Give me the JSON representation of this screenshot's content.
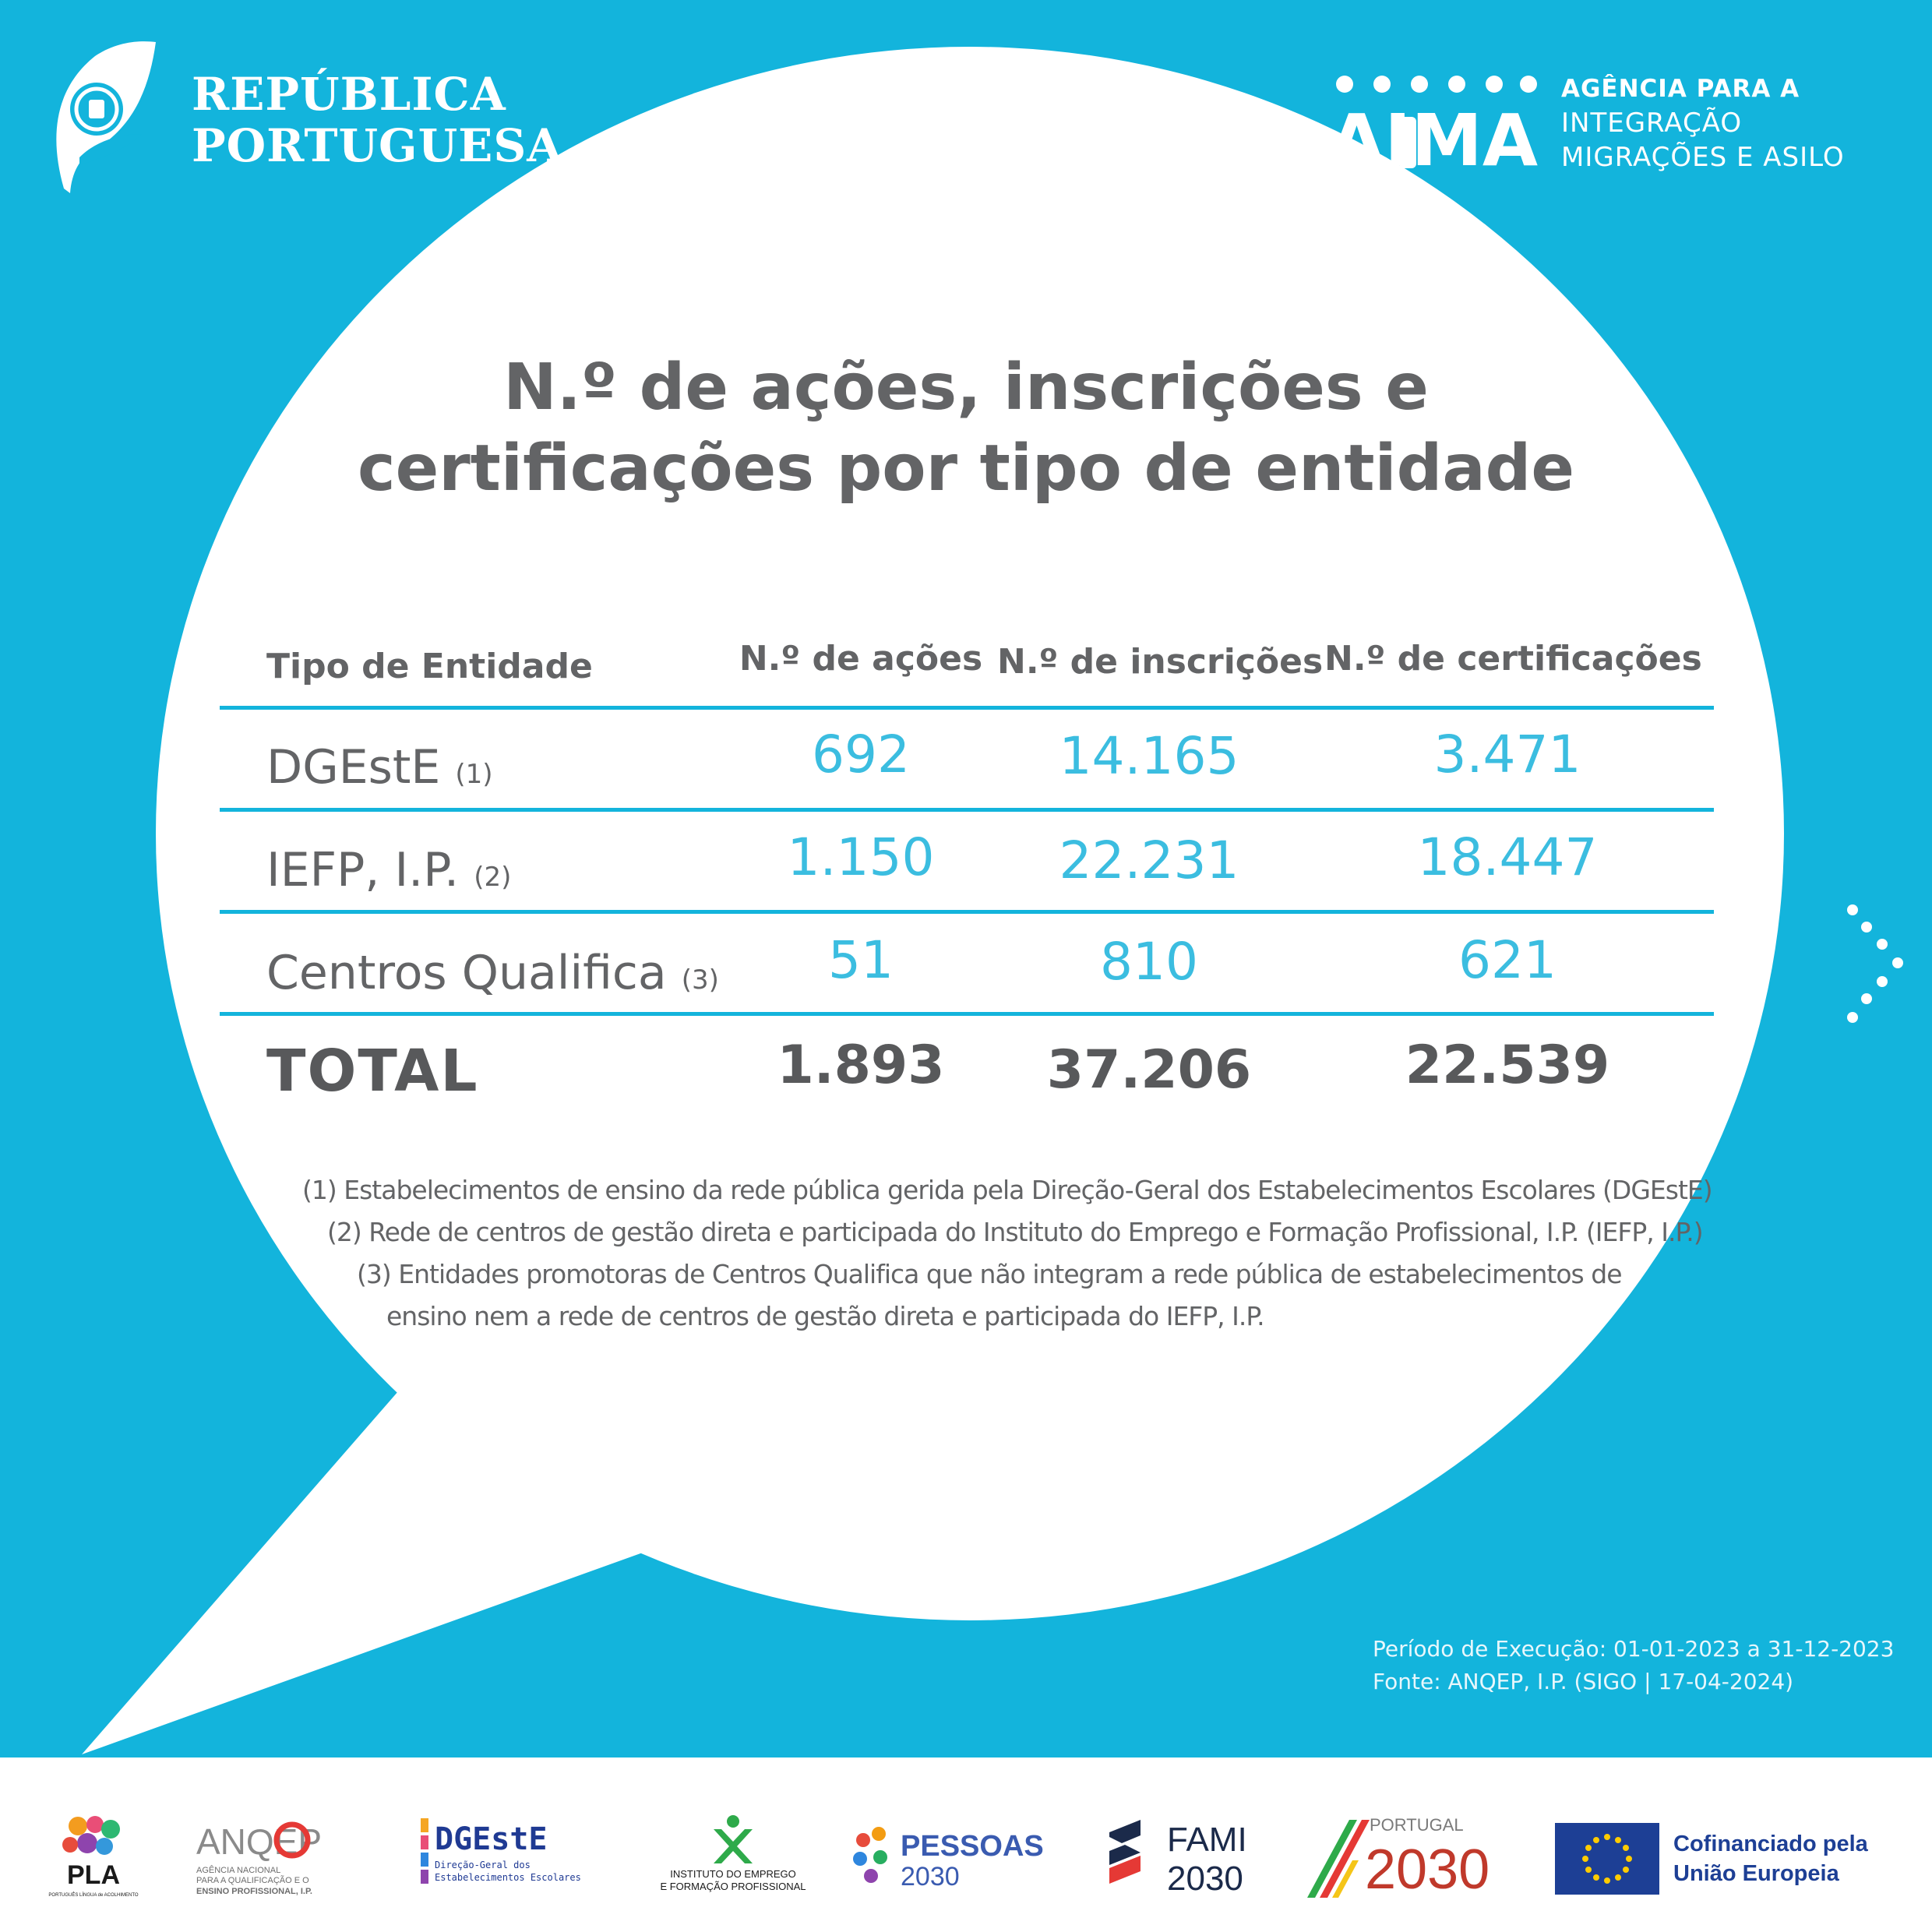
{
  "header": {
    "republica": [
      "REPÚBLICA",
      "PORTUGUESA"
    ],
    "aima_wordmark": "AIMA",
    "aima_lines": [
      "AGÊNCIA PARA A",
      "INTEGRAÇÃO",
      "MIGRAÇÕES E ASILO"
    ]
  },
  "title": [
    "N.º de ações, inscrições e",
    "certificações por tipo de entidade"
  ],
  "table": {
    "headers": [
      "Tipo de Entidade",
      "N.º de ações",
      "N.º de inscrições",
      "N.º de certificações"
    ],
    "rows": [
      {
        "label": "DGEstE",
        "note": "(1)",
        "acoes": "692",
        "inscricoes": "14.165",
        "certificacoes": "3.471"
      },
      {
        "label": "IEFP, I.P.",
        "note": "(2)",
        "acoes": "1.150",
        "inscricoes": "22.231",
        "certificacoes": "18.447"
      },
      {
        "label": "Centros Qualifica",
        "note": "(3)",
        "acoes": "51",
        "inscricoes": "810",
        "certificacoes": "621"
      }
    ],
    "total": {
      "label": "TOTAL",
      "acoes": "1.893",
      "inscricoes": "37.206",
      "certificacoes": "22.539"
    }
  },
  "footnotes": [
    "(1) Estabelecimentos de ensino da rede pública gerida pela Direção-Geral dos Estabelecimentos Escolares (DGEstE)",
    "(2) Rede de centros de gestão direta e participada do Instituto do Emprego e Formação Profissional, I.P. (IEFP, I.P.)",
    "(3) Entidades promotoras de Centros Qualifica que não integram a rede pública de estabelecimentos de",
    "ensino nem a rede de centros de gestão direta e participada do IEFP, I.P."
  ],
  "source": {
    "period": "Período de Execução: 01-01-2023 a 31-12-2023",
    "fonte": "Fonte: ANQEP, I.P. (SIGO | 17-04-2024)"
  },
  "footer": {
    "pla": "PLA",
    "pla_sub": "PORTUGUÊS LÍNGUA de ACOLHIMENTO",
    "anqep": "ANQEP",
    "anqep_sub": [
      "AGÊNCIA NACIONAL",
      "PARA A QUALIFICAÇÃO E O",
      "ENSINO PROFISSIONAL, I.P."
    ],
    "dgeste": "DGEstE",
    "dgeste_sub": [
      "Direção-Geral dos",
      "Estabelecimentos Escolares"
    ],
    "iefp_sub": [
      "INSTITUTO DO EMPREGO",
      "E FORMAÇÃO PROFISSIONAL"
    ],
    "pessoas": "PESSOAS",
    "pessoas_year": "2030",
    "fami": "FAMI",
    "fami_year": "2030",
    "portugal": "PORTUGAL",
    "portugal_year": "2030",
    "eu": [
      "Cofinanciado pela",
      "União Europeia"
    ]
  },
  "colors": {
    "background": "#13b4dc",
    "text_grey": "#636466",
    "value_blue": "#3bbde0"
  }
}
